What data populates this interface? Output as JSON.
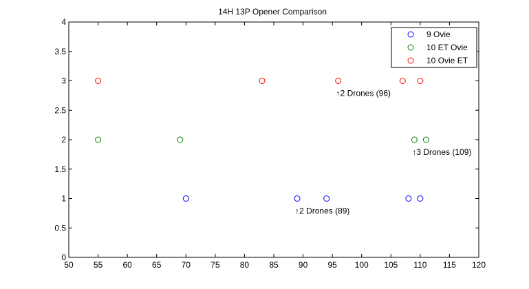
{
  "chart_data": {
    "type": "scatter",
    "title": "14H 13P Opener Comparison",
    "xlabel": "",
    "ylabel": "",
    "xlim": [
      50,
      120
    ],
    "ylim": [
      0,
      4
    ],
    "xticks": [
      50,
      55,
      60,
      65,
      70,
      75,
      80,
      85,
      90,
      95,
      100,
      105,
      110,
      115,
      120
    ],
    "yticks": [
      0,
      0.5,
      1,
      1.5,
      2,
      2.5,
      3,
      3.5,
      4
    ],
    "ytick_labels": [
      "0",
      "0.5",
      "1",
      "1.5",
      "2",
      "2.5",
      "3",
      "3.5",
      "4"
    ],
    "grid": false,
    "legend_position": "top-right",
    "series": [
      {
        "name": "9 Ovie",
        "color": "#0000ff",
        "marker": "circle-open",
        "x": [
          70,
          89,
          94,
          108,
          110
        ],
        "y": [
          1,
          1,
          1,
          1,
          1
        ]
      },
      {
        "name": "10 ET Ovie",
        "color": "#008000",
        "marker": "circle-open",
        "x": [
          55,
          69,
          109,
          111
        ],
        "y": [
          2,
          2,
          2,
          2
        ]
      },
      {
        "name": "10 Ovie ET",
        "color": "#ff0000",
        "marker": "circle-open",
        "x": [
          55,
          83,
          96,
          107,
          110
        ],
        "y": [
          3,
          3,
          3,
          3,
          3
        ]
      }
    ],
    "annotations": [
      {
        "text": "↑2 Drones (89)",
        "x": 89,
        "y": 1
      },
      {
        "text": "↑2 Drones (96)",
        "x": 96,
        "y": 3
      },
      {
        "text": "↑3 Drones (109)",
        "x": 109,
        "y": 2
      }
    ]
  }
}
